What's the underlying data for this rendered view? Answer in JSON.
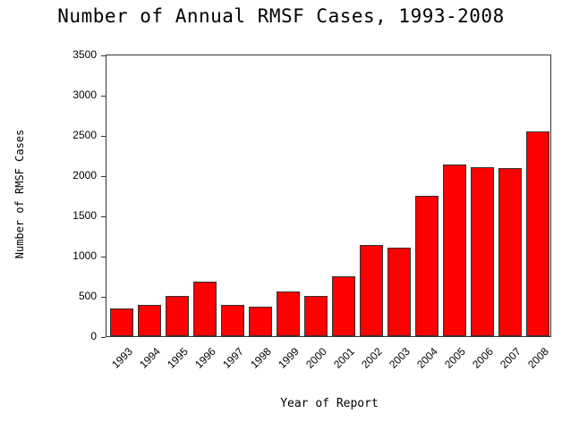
{
  "chart_data": {
    "type": "bar",
    "title": "Number of Annual RMSF Cases, 1993-2008",
    "xlabel": "Year of Report",
    "ylabel": "Number of RMSF Cases",
    "categories": [
      "1993",
      "1994",
      "1995",
      "1996",
      "1997",
      "1998",
      "1999",
      "2000",
      "2001",
      "2002",
      "2003",
      "2004",
      "2005",
      "2006",
      "2007",
      "2008"
    ],
    "values": [
      345,
      385,
      500,
      675,
      385,
      365,
      555,
      495,
      740,
      1130,
      1105,
      1750,
      2130,
      2100,
      2090,
      2550
    ],
    "ylim": [
      0,
      3500
    ],
    "yticks": [
      0,
      500,
      1000,
      1500,
      2000,
      2500,
      3000,
      3500
    ],
    "bar_color": "#ff0000",
    "grid": false,
    "legend": null
  }
}
